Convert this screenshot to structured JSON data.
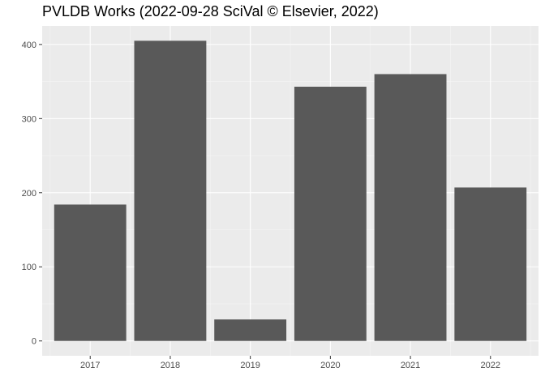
{
  "chart_data": {
    "type": "bar",
    "title": "PVLDB Works (2022-09-28 SciVal © Elsevier, 2022)",
    "xlabel": "",
    "ylabel": "",
    "categories": [
      "2017",
      "2018",
      "2019",
      "2020",
      "2021",
      "2022"
    ],
    "values": [
      184,
      405,
      29,
      343,
      360,
      207
    ],
    "ylim": [
      -20,
      425
    ],
    "yticks": [
      0,
      100,
      200,
      300,
      400
    ],
    "grid": true,
    "legend": "none",
    "colors": {
      "bar": "#595959",
      "panel_background": "#ebebeb",
      "grid_major": "#ffffff",
      "grid_minor": "#f5f5f5"
    }
  }
}
